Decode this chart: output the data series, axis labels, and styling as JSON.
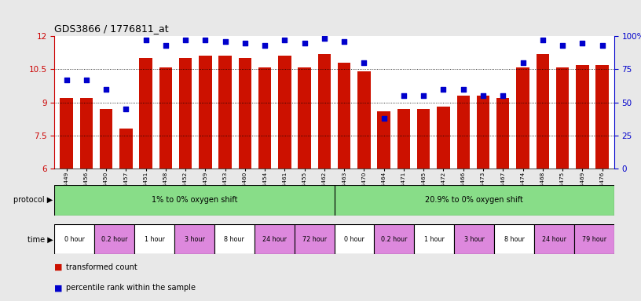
{
  "title": "GDS3866 / 1776811_at",
  "samples": [
    "GSM564449",
    "GSM564456",
    "GSM564450",
    "GSM564457",
    "GSM564451",
    "GSM564458",
    "GSM564452",
    "GSM564459",
    "GSM564453",
    "GSM564460",
    "GSM564454",
    "GSM564461",
    "GSM564455",
    "GSM564462",
    "GSM564463",
    "GSM564470",
    "GSM564464",
    "GSM564471",
    "GSM564465",
    "GSM564472",
    "GSM564466",
    "GSM564473",
    "GSM564467",
    "GSM564474",
    "GSM564468",
    "GSM564475",
    "GSM564469",
    "GSM564476"
  ],
  "bar_values": [
    9.2,
    9.2,
    8.7,
    7.8,
    11.0,
    10.6,
    11.0,
    11.1,
    11.1,
    11.0,
    10.6,
    11.1,
    10.6,
    11.2,
    10.8,
    10.4,
    8.6,
    8.7,
    8.7,
    8.8,
    9.3,
    9.3,
    9.2,
    10.6,
    11.2,
    10.6,
    10.7,
    10.7
  ],
  "percentile_values": [
    67,
    67,
    60,
    45,
    97,
    93,
    97,
    97,
    96,
    95,
    93,
    97,
    95,
    98,
    96,
    80,
    38,
    55,
    55,
    60,
    60,
    55,
    55,
    80,
    97,
    93,
    95,
    93
  ],
  "ylim_left": [
    6,
    12
  ],
  "ylim_right": [
    0,
    100
  ],
  "yticks_left": [
    6,
    7.5,
    9,
    10.5,
    12
  ],
  "yticks_right": [
    0,
    25,
    50,
    75,
    100
  ],
  "bar_color": "#cc1100",
  "dot_color": "#0000cc",
  "background_color": "#e8e8e8",
  "plot_bg_color": "#ffffff",
  "protocol_groups": [
    {
      "label": "1% to 0% oxygen shift",
      "start": 0,
      "end": 14,
      "color": "#88dd88"
    },
    {
      "label": "20.9% to 0% oxygen shift",
      "start": 14,
      "end": 28,
      "color": "#88dd88"
    }
  ],
  "time_groups": [
    {
      "label": "0 hour",
      "start": 0,
      "end": 2,
      "color": "#ffffff"
    },
    {
      "label": "0.2 hour",
      "start": 2,
      "end": 4,
      "color": "#dd88dd"
    },
    {
      "label": "1 hour",
      "start": 4,
      "end": 6,
      "color": "#ffffff"
    },
    {
      "label": "3 hour",
      "start": 6,
      "end": 8,
      "color": "#dd88dd"
    },
    {
      "label": "8 hour",
      "start": 8,
      "end": 10,
      "color": "#ffffff"
    },
    {
      "label": "24 hour",
      "start": 10,
      "end": 12,
      "color": "#dd88dd"
    },
    {
      "label": "72 hour",
      "start": 12,
      "end": 14,
      "color": "#dd88dd"
    },
    {
      "label": "0 hour",
      "start": 14,
      "end": 16,
      "color": "#ffffff"
    },
    {
      "label": "0.2 hour",
      "start": 16,
      "end": 18,
      "color": "#dd88dd"
    },
    {
      "label": "1 hour",
      "start": 18,
      "end": 20,
      "color": "#ffffff"
    },
    {
      "label": "3 hour",
      "start": 20,
      "end": 22,
      "color": "#dd88dd"
    },
    {
      "label": "8 hour",
      "start": 22,
      "end": 24,
      "color": "#ffffff"
    },
    {
      "label": "24 hour",
      "start": 24,
      "end": 26,
      "color": "#dd88dd"
    },
    {
      "label": "79 hour",
      "start": 26,
      "end": 28,
      "color": "#dd88dd"
    }
  ]
}
